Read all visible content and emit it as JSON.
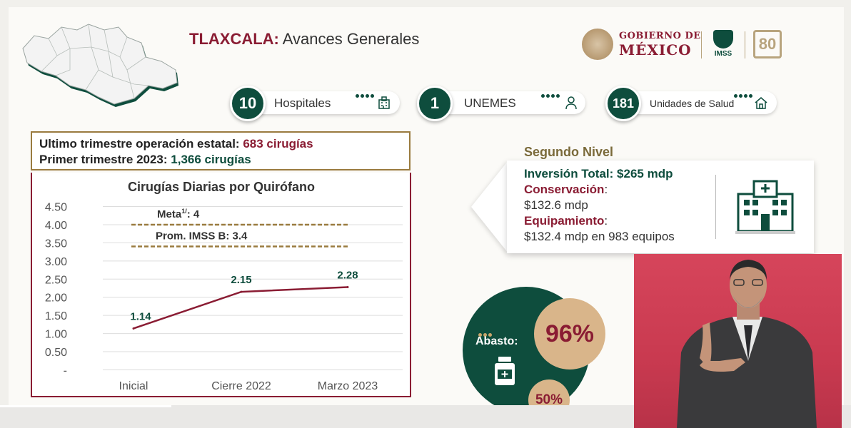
{
  "header": {
    "title_bold": "TLAXCALA:",
    "title_rest": " Avances Generales",
    "gob_line1": "GOBIERNO DE",
    "gob_line2": "MÉXICO",
    "imss_label": "IMSS",
    "anniversary_label": "80"
  },
  "stats": [
    {
      "value": "10",
      "label": "Hospitales",
      "icon": "hospital-icon"
    },
    {
      "value": "1",
      "label": "UNEMES",
      "icon": "doctor-icon"
    },
    {
      "value": "181",
      "label": "Unidades de Salud",
      "icon": "house-icon"
    }
  ],
  "summary": {
    "line1_label": "Ultimo trimestre operación estatal: ",
    "line1_value": "683 cirugías",
    "line2_label": "Primer trimestre 2023: ",
    "line2_value": "1,366 cirugías"
  },
  "chart_data": {
    "type": "line",
    "title": "Cirugías Diarias por Quirófano",
    "categories": [
      "Inicial",
      "Cierre 2022",
      "Marzo 2023"
    ],
    "series": [
      {
        "values": [
          1.14,
          2.15,
          2.28
        ]
      }
    ],
    "data_labels": [
      "1.14",
      "2.15",
      "2.28"
    ],
    "yticks": [
      "4.50",
      "4.00",
      "3.50",
      "3.00",
      "2.50",
      "2.00",
      "1.50",
      "1.00",
      "0.50",
      "-"
    ],
    "ylim": [
      0,
      4.5
    ],
    "reference_lines": [
      {
        "label_main": "Meta",
        "label_sup": "1/",
        "label_value": ": 4",
        "value": 4.0
      },
      {
        "label_main": "Prom. IMSS B: 3.4",
        "value": 3.4
      }
    ],
    "colors": {
      "line": "#8a1c33",
      "labels": "#0e4d3d",
      "reference": "#9a7b3f"
    }
  },
  "segundo_nivel": {
    "title": "Segundo Nivel",
    "investment_label": "Inversión Total: $265 mdp",
    "conservation_label": "Conservación",
    "conservation_colon": ":",
    "conservation_value": "$132.6 mdp",
    "equipment_label": "Equipamiento",
    "equipment_colon": ":",
    "equipment_value": "$132.4 mdp en 983 equipos",
    "icon": "building-icon"
  },
  "abasto": {
    "label": "Abasto:",
    "main_percent": "96%",
    "secondary_percent": "50%",
    "icon": "medicine-bottle-icon"
  },
  "colors": {
    "brand_red": "#8a1c33",
    "brand_green": "#0e4d3d",
    "gold": "#9a7b3f",
    "interpreter_bg": "#c93a50"
  }
}
